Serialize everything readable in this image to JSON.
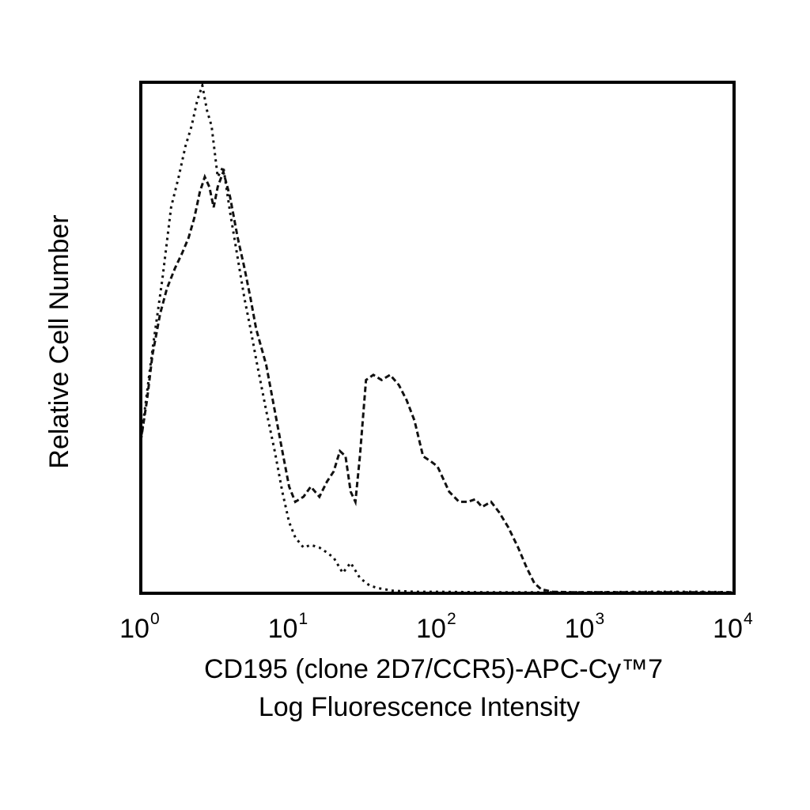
{
  "chart_data": {
    "type": "line",
    "xscale": "log",
    "xlim": [
      1,
      10000
    ],
    "ylabel": "Relative Cell Number",
    "xlabel_line1": "CD195 (clone 2D7/CCR5)-APC-Cy™7",
    "xlabel_line2": "Log Fluorescence Intensity",
    "x_ticks": [
      {
        "value": 1,
        "base": "10",
        "exp": "0"
      },
      {
        "value": 10,
        "base": "10",
        "exp": "1"
      },
      {
        "value": 100,
        "base": "10",
        "exp": "2"
      },
      {
        "value": 1000,
        "base": "10",
        "exp": "3"
      },
      {
        "value": 10000,
        "base": "10",
        "exp": "4"
      }
    ],
    "ylim": [
      0,
      100
    ],
    "grid": false,
    "series": [
      {
        "line_style": "dotted",
        "points": [
          [
            1.0,
            30
          ],
          [
            1.2,
            48
          ],
          [
            1.4,
            62
          ],
          [
            1.6,
            76
          ],
          [
            1.8,
            82
          ],
          [
            2.0,
            88
          ],
          [
            2.2,
            92
          ],
          [
            2.4,
            97
          ],
          [
            2.6,
            100
          ],
          [
            2.8,
            95
          ],
          [
            3.0,
            92
          ],
          [
            3.3,
            82
          ],
          [
            3.6,
            84
          ],
          [
            4.0,
            75
          ],
          [
            4.5,
            66
          ],
          [
            5.0,
            58
          ],
          [
            5.5,
            52
          ],
          [
            6.0,
            46
          ],
          [
            7.0,
            36
          ],
          [
            8.0,
            28
          ],
          [
            9.0,
            20
          ],
          [
            10.0,
            14
          ],
          [
            11.0,
            11
          ],
          [
            12.5,
            9
          ],
          [
            14.0,
            9.5
          ],
          [
            16.0,
            9
          ],
          [
            18.0,
            8
          ],
          [
            20.0,
            7
          ],
          [
            23.0,
            4
          ],
          [
            26.0,
            6
          ],
          [
            30.0,
            3
          ],
          [
            35.0,
            1.5
          ],
          [
            40.0,
            1
          ],
          [
            50.0,
            0.5
          ],
          [
            70.0,
            0.3
          ],
          [
            100.0,
            0.3
          ],
          [
            200.0,
            0.2
          ],
          [
            500.0,
            0.2
          ],
          [
            1000.0,
            0.2
          ],
          [
            3000.0,
            0.3
          ],
          [
            6000.0,
            0.3
          ],
          [
            10000.0,
            0.2
          ]
        ]
      },
      {
        "line_style": "dashed",
        "points": [
          [
            1.0,
            30
          ],
          [
            1.1,
            38
          ],
          [
            1.2,
            47
          ],
          [
            1.35,
            55
          ],
          [
            1.5,
            60
          ],
          [
            1.7,
            64
          ],
          [
            1.9,
            67
          ],
          [
            2.1,
            70
          ],
          [
            2.3,
            74
          ],
          [
            2.5,
            79
          ],
          [
            2.7,
            82
          ],
          [
            2.9,
            80
          ],
          [
            3.1,
            76
          ],
          [
            3.3,
            80
          ],
          [
            3.6,
            83
          ],
          [
            4.0,
            78
          ],
          [
            4.5,
            70
          ],
          [
            5.0,
            64
          ],
          [
            5.5,
            58
          ],
          [
            6.0,
            52
          ],
          [
            7.0,
            45
          ],
          [
            8.0,
            36
          ],
          [
            9.0,
            28
          ],
          [
            10.0,
            21
          ],
          [
            11.0,
            18
          ],
          [
            12.5,
            19
          ],
          [
            14.0,
            21
          ],
          [
            16.0,
            19
          ],
          [
            18.0,
            22
          ],
          [
            20.0,
            24
          ],
          [
            22.0,
            28
          ],
          [
            24.0,
            27
          ],
          [
            26.0,
            20
          ],
          [
            28.0,
            18
          ],
          [
            30.0,
            27
          ],
          [
            33.0,
            42
          ],
          [
            37.0,
            43
          ],
          [
            42.0,
            42
          ],
          [
            48.0,
            43
          ],
          [
            55.0,
            41
          ],
          [
            62.0,
            38
          ],
          [
            70.0,
            34
          ],
          [
            80.0,
            27
          ],
          [
            90.0,
            26
          ],
          [
            100.0,
            25
          ],
          [
            120.0,
            20
          ],
          [
            140.0,
            18
          ],
          [
            160.0,
            18
          ],
          [
            180.0,
            18.5
          ],
          [
            200.0,
            17
          ],
          [
            230.0,
            18
          ],
          [
            260.0,
            16
          ],
          [
            300.0,
            13
          ],
          [
            350.0,
            9
          ],
          [
            400.0,
            5
          ],
          [
            450.0,
            2
          ],
          [
            500.0,
            0.8
          ],
          [
            600.0,
            0.3
          ],
          [
            800.0,
            0.2
          ],
          [
            1000.0,
            0.2
          ],
          [
            3000.0,
            0.2
          ],
          [
            10000.0,
            0.2
          ]
        ]
      }
    ]
  }
}
